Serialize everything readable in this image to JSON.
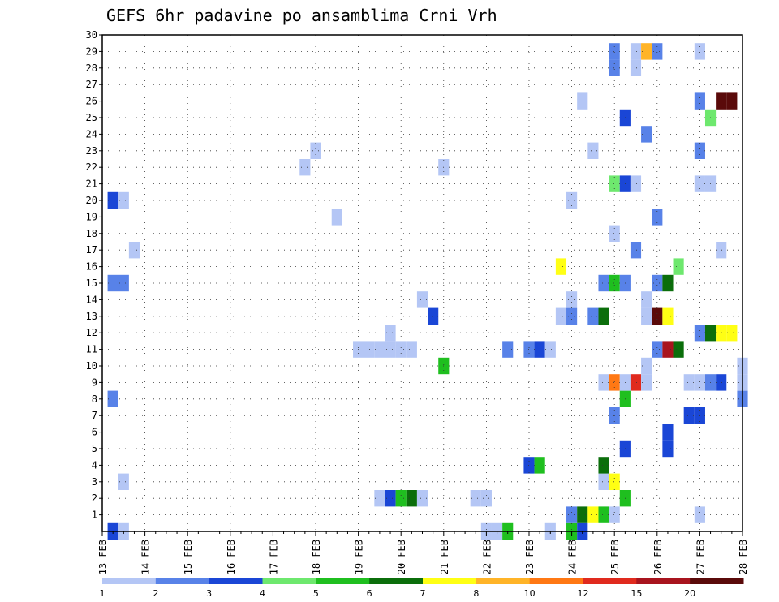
{
  "chart_data": {
    "type": "heatmap",
    "title": "GEFS 6hr padavine po ansamblima Crni Vrh",
    "xlabel": "",
    "ylabel": "",
    "x_range": [
      "13 FEB 00Z",
      "28 FEB 00Z"
    ],
    "x_ticks": [
      "13 FEB",
      "14 FEB",
      "15 FEB",
      "16 FEB",
      "17 FEB",
      "18 FEB",
      "19 FEB",
      "20 FEB",
      "21 FEB",
      "22 FEB",
      "23 FEB",
      "24 FEB",
      "25 FEB",
      "26 FEB",
      "27 FEB",
      "28 FEB"
    ],
    "y_range": [
      0,
      30
    ],
    "y_ticks": [
      "1",
      "2",
      "3",
      "4",
      "5",
      "6",
      "7",
      "8",
      "9",
      "10",
      "11",
      "12",
      "13",
      "14",
      "15",
      "16",
      "17",
      "18",
      "19",
      "20",
      "21",
      "22",
      "23",
      "24",
      "25",
      "26",
      "27",
      "28",
      "29",
      "30"
    ],
    "grid": true,
    "time_step_hours": 6,
    "colorbar": {
      "labels": [
        "1",
        "2",
        "3",
        "4",
        "5",
        "6",
        "7",
        "8",
        "10",
        "12",
        "15",
        "20"
      ],
      "colors": [
        "#b4c6f5",
        "#5882e8",
        "#1a46d6",
        "#6ee86e",
        "#1fbf1f",
        "#0b6e0b",
        "#ffff14",
        "#ffb428",
        "#ff7814",
        "#e02a1e",
        "#a8141e",
        "#5a0a0a"
      ]
    },
    "cells": [
      {
        "member": 0,
        "time": "13 FEB 06Z",
        "bin": 3
      },
      {
        "member": 0,
        "time": "13 FEB 12Z",
        "bin": 1
      },
      {
        "member": 0,
        "time": "22 FEB 00Z",
        "bin": 1
      },
      {
        "member": 0,
        "time": "22 FEB 06Z",
        "bin": 1
      },
      {
        "member": 0,
        "time": "22 FEB 12Z",
        "bin": 5
      },
      {
        "member": 0,
        "time": "23 FEB 12Z",
        "bin": 1
      },
      {
        "member": 0,
        "time": "24 FEB 00Z",
        "bin": 5
      },
      {
        "member": 0,
        "time": "24 FEB 06Z",
        "bin": 3
      },
      {
        "member": 1,
        "time": "24 FEB 00Z",
        "bin": 2
      },
      {
        "member": 1,
        "time": "24 FEB 06Z",
        "bin": 6
      },
      {
        "member": 1,
        "time": "24 FEB 12Z",
        "bin": 7
      },
      {
        "member": 1,
        "time": "24 FEB 18Z",
        "bin": 5
      },
      {
        "member": 1,
        "time": "25 FEB 00Z",
        "bin": 1
      },
      {
        "member": 1,
        "time": "27 FEB 00Z",
        "bin": 1
      },
      {
        "member": 2,
        "time": "19 FEB 12Z",
        "bin": 1
      },
      {
        "member": 2,
        "time": "19 FEB 18Z",
        "bin": 3
      },
      {
        "member": 2,
        "time": "20 FEB 00Z",
        "bin": 5
      },
      {
        "member": 2,
        "time": "20 FEB 06Z",
        "bin": 6
      },
      {
        "member": 2,
        "time": "20 FEB 12Z",
        "bin": 1
      },
      {
        "member": 2,
        "time": "21 FEB 18Z",
        "bin": 1
      },
      {
        "member": 2,
        "time": "22 FEB 00Z",
        "bin": 1
      },
      {
        "member": 2,
        "time": "25 FEB 06Z",
        "bin": 5
      },
      {
        "member": 3,
        "time": "13 FEB 12Z",
        "bin": 1
      },
      {
        "member": 3,
        "time": "24 FEB 18Z",
        "bin": 1
      },
      {
        "member": 3,
        "time": "25 FEB 00Z",
        "bin": 7
      },
      {
        "member": 4,
        "time": "23 FEB 00Z",
        "bin": 3
      },
      {
        "member": 4,
        "time": "23 FEB 06Z",
        "bin": 5
      },
      {
        "member": 4,
        "time": "24 FEB 18Z",
        "bin": 6
      },
      {
        "member": 5,
        "time": "25 FEB 06Z",
        "bin": 3
      },
      {
        "member": 5,
        "time": "26 FEB 06Z",
        "bin": 3
      },
      {
        "member": 6,
        "time": "26 FEB 06Z",
        "bin": 3
      },
      {
        "member": 7,
        "time": "25 FEB 00Z",
        "bin": 2
      },
      {
        "member": 7,
        "time": "26 FEB 18Z",
        "bin": 3
      },
      {
        "member": 7,
        "time": "27 FEB 00Z",
        "bin": 3
      },
      {
        "member": 8,
        "time": "13 FEB 06Z",
        "bin": 2
      },
      {
        "member": 8,
        "time": "25 FEB 06Z",
        "bin": 5
      },
      {
        "member": 8,
        "time": "28 FEB 00Z",
        "bin": 2
      },
      {
        "member": 9,
        "time": "24 FEB 18Z",
        "bin": 1
      },
      {
        "member": 9,
        "time": "25 FEB 00Z",
        "bin": 9
      },
      {
        "member": 9,
        "time": "25 FEB 06Z",
        "bin": 1
      },
      {
        "member": 9,
        "time": "25 FEB 12Z",
        "bin": 10
      },
      {
        "member": 9,
        "time": "25 FEB 18Z",
        "bin": 1
      },
      {
        "member": 9,
        "time": "26 FEB 18Z",
        "bin": 1
      },
      {
        "member": 9,
        "time": "27 FEB 00Z",
        "bin": 1
      },
      {
        "member": 9,
        "time": "27 FEB 06Z",
        "bin": 2
      },
      {
        "member": 9,
        "time": "27 FEB 12Z",
        "bin": 3
      },
      {
        "member": 9,
        "time": "28 FEB 00Z",
        "bin": 1
      },
      {
        "member": 10,
        "time": "21 FEB 00Z",
        "bin": 5
      },
      {
        "member": 10,
        "time": "25 FEB 18Z",
        "bin": 1
      },
      {
        "member": 10,
        "time": "28 FEB 00Z",
        "bin": 1
      },
      {
        "member": 11,
        "time": "19 FEB 00Z",
        "bin": 1
      },
      {
        "member": 11,
        "time": "19 FEB 06Z",
        "bin": 1
      },
      {
        "member": 11,
        "time": "19 FEB 12Z",
        "bin": 1
      },
      {
        "member": 11,
        "time": "19 FEB 18Z",
        "bin": 1
      },
      {
        "member": 11,
        "time": "20 FEB 00Z",
        "bin": 1
      },
      {
        "member": 11,
        "time": "20 FEB 06Z",
        "bin": 1
      },
      {
        "member": 11,
        "time": "22 FEB 12Z",
        "bin": 2
      },
      {
        "member": 11,
        "time": "23 FEB 00Z",
        "bin": 2
      },
      {
        "member": 11,
        "time": "23 FEB 06Z",
        "bin": 3
      },
      {
        "member": 11,
        "time": "23 FEB 12Z",
        "bin": 1
      },
      {
        "member": 11,
        "time": "26 FEB 00Z",
        "bin": 2
      },
      {
        "member": 11,
        "time": "26 FEB 06Z",
        "bin": 11
      },
      {
        "member": 11,
        "time": "26 FEB 12Z",
        "bin": 6
      },
      {
        "member": 12,
        "time": "19 FEB 18Z",
        "bin": 1
      },
      {
        "member": 12,
        "time": "27 FEB 00Z",
        "bin": 2
      },
      {
        "member": 12,
        "time": "27 FEB 06Z",
        "bin": 6
      },
      {
        "member": 12,
        "time": "27 FEB 12Z",
        "bin": 7
      },
      {
        "member": 12,
        "time": "27 FEB 18Z",
        "bin": 7
      },
      {
        "member": 13,
        "time": "20 FEB 18Z",
        "bin": 3
      },
      {
        "member": 13,
        "time": "23 FEB 18Z",
        "bin": 1
      },
      {
        "member": 13,
        "time": "24 FEB 00Z",
        "bin": 2
      },
      {
        "member": 13,
        "time": "24 FEB 12Z",
        "bin": 2
      },
      {
        "member": 13,
        "time": "24 FEB 18Z",
        "bin": 6
      },
      {
        "member": 13,
        "time": "25 FEB 18Z",
        "bin": 1
      },
      {
        "member": 13,
        "time": "26 FEB 00Z",
        "bin": 12
      },
      {
        "member": 13,
        "time": "26 FEB 06Z",
        "bin": 7
      },
      {
        "member": 14,
        "time": "20 FEB 12Z",
        "bin": 1
      },
      {
        "member": 14,
        "time": "24 FEB 00Z",
        "bin": 1
      },
      {
        "member": 14,
        "time": "25 FEB 18Z",
        "bin": 1
      },
      {
        "member": 15,
        "time": "13 FEB 06Z",
        "bin": 2
      },
      {
        "member": 15,
        "time": "13 FEB 12Z",
        "bin": 2
      },
      {
        "member": 15,
        "time": "24 FEB 18Z",
        "bin": 2
      },
      {
        "member": 15,
        "time": "25 FEB 00Z",
        "bin": 5
      },
      {
        "member": 15,
        "time": "25 FEB 06Z",
        "bin": 2
      },
      {
        "member": 15,
        "time": "26 FEB 00Z",
        "bin": 2
      },
      {
        "member": 15,
        "time": "26 FEB 06Z",
        "bin": 6
      },
      {
        "member": 16,
        "time": "23 FEB 18Z",
        "bin": 7
      },
      {
        "member": 16,
        "time": "26 FEB 12Z",
        "bin": 4
      },
      {
        "member": 17,
        "time": "13 FEB 18Z",
        "bin": 1
      },
      {
        "member": 17,
        "time": "25 FEB 12Z",
        "bin": 2
      },
      {
        "member": 17,
        "time": "27 FEB 12Z",
        "bin": 1
      },
      {
        "member": 18,
        "time": "25 FEB 00Z",
        "bin": 1
      },
      {
        "member": 19,
        "time": "18 FEB 12Z",
        "bin": 1
      },
      {
        "member": 19,
        "time": "26 FEB 00Z",
        "bin": 2
      },
      {
        "member": 20,
        "time": "13 FEB 06Z",
        "bin": 3
      },
      {
        "member": 20,
        "time": "13 FEB 12Z",
        "bin": 1
      },
      {
        "member": 20,
        "time": "24 FEB 00Z",
        "bin": 1
      },
      {
        "member": 21,
        "time": "25 FEB 00Z",
        "bin": 4
      },
      {
        "member": 21,
        "time": "25 FEB 06Z",
        "bin": 3
      },
      {
        "member": 21,
        "time": "25 FEB 12Z",
        "bin": 1
      },
      {
        "member": 21,
        "time": "27 FEB 00Z",
        "bin": 1
      },
      {
        "member": 21,
        "time": "27 FEB 06Z",
        "bin": 1
      },
      {
        "member": 22,
        "time": "17 FEB 18Z",
        "bin": 1
      },
      {
        "member": 22,
        "time": "21 FEB 00Z",
        "bin": 1
      },
      {
        "member": 23,
        "time": "18 FEB 00Z",
        "bin": 1
      },
      {
        "member": 23,
        "time": "24 FEB 12Z",
        "bin": 1
      },
      {
        "member": 23,
        "time": "27 FEB 00Z",
        "bin": 2
      },
      {
        "member": 24,
        "time": "25 FEB 18Z",
        "bin": 2
      },
      {
        "member": 25,
        "time": "25 FEB 06Z",
        "bin": 3
      },
      {
        "member": 25,
        "time": "27 FEB 06Z",
        "bin": 4
      },
      {
        "member": 26,
        "time": "24 FEB 06Z",
        "bin": 1
      },
      {
        "member": 26,
        "time": "27 FEB 00Z",
        "bin": 2
      },
      {
        "member": 26,
        "time": "27 FEB 12Z",
        "bin": 12
      },
      {
        "member": 26,
        "time": "27 FEB 18Z",
        "bin": 12
      },
      {
        "member": 28,
        "time": "25 FEB 00Z",
        "bin": 2
      },
      {
        "member": 28,
        "time": "25 FEB 12Z",
        "bin": 1
      },
      {
        "member": 29,
        "time": "25 FEB 00Z",
        "bin": 2
      },
      {
        "member": 29,
        "time": "25 FEB 12Z",
        "bin": 1
      },
      {
        "member": 29,
        "time": "25 FEB 18Z",
        "bin": 8
      },
      {
        "member": 29,
        "time": "26 FEB 00Z",
        "bin": 2
      },
      {
        "member": 29,
        "time": "27 FEB 00Z",
        "bin": 1
      }
    ]
  }
}
